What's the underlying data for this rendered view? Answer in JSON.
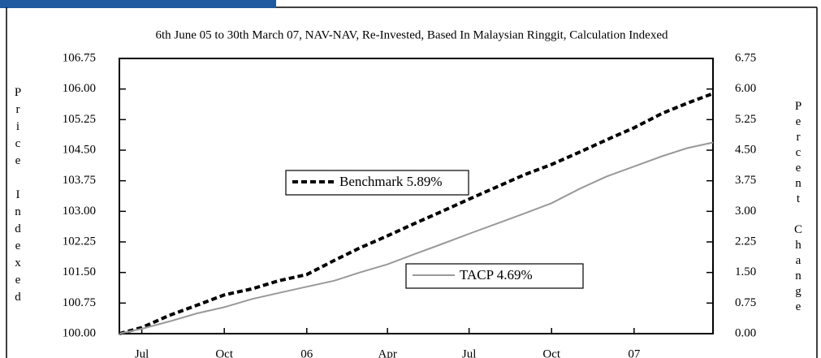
{
  "chart_data": {
    "type": "line",
    "title": "6th June 05 to 30th March 07, NAV-NAV, Re-Invested, Based In Malaysian Ringgit, Calculation Indexed",
    "y_label": "Price Indexed",
    "y2_label": "Percent Change",
    "x": [
      "2005-06-06",
      "2005-07-01",
      "2005-08-01",
      "2005-09-01",
      "2005-10-01",
      "2005-11-01",
      "2005-12-01",
      "2006-01-01",
      "2006-02-01",
      "2006-03-01",
      "2006-04-01",
      "2006-05-01",
      "2006-06-01",
      "2006-07-01",
      "2006-08-01",
      "2006-09-01",
      "2006-10-01",
      "2006-11-01",
      "2006-12-01",
      "2007-01-01",
      "2007-02-01",
      "2007-03-01",
      "2007-03-30"
    ],
    "xlim": [
      "2005-06-06",
      "2007-03-30"
    ],
    "xticks": [
      {
        "value": "2005-07-01",
        "label": "Jul"
      },
      {
        "value": "2005-10-01",
        "label": "Oct"
      },
      {
        "value": "2006-01-01",
        "label": "06"
      },
      {
        "value": "2006-04-01",
        "label": "Apr"
      },
      {
        "value": "2006-07-01",
        "label": "Jul"
      },
      {
        "value": "2006-10-01",
        "label": "Oct"
      },
      {
        "value": "2007-01-01",
        "label": "07"
      }
    ],
    "ylim": [
      100,
      106.75
    ],
    "yticks": [
      {
        "value": 100,
        "label": "100.00"
      },
      100.75,
      {
        "value": 101.5,
        "label": "101.50"
      },
      102.25,
      {
        "value": 103,
        "label": "103.00"
      },
      103.75,
      {
        "value": 104.5,
        "label": "104.50"
      },
      105.25,
      {
        "value": 106,
        "label": "106.00"
      },
      106.75
    ],
    "y2lim": [
      0,
      6.75
    ],
    "y2ticks": [
      {
        "value": 0,
        "label": "0.00"
      },
      0.75,
      {
        "value": 1.5,
        "label": "1.50"
      },
      2.25,
      {
        "value": 3,
        "label": "3.00"
      },
      3.75,
      {
        "value": 4.5,
        "label": "4.50"
      },
      5.25,
      {
        "value": 6,
        "label": "6.00"
      },
      6.75
    ],
    "series": [
      {
        "name": "Benchmark 5.89%",
        "color": "#000000",
        "dashed": true,
        "values": [
          100,
          100.15,
          100.45,
          100.7,
          100.95,
          101.1,
          101.3,
          101.45,
          101.8,
          102.1,
          102.4,
          102.7,
          103.0,
          103.3,
          103.6,
          103.9,
          104.15,
          104.45,
          104.75,
          105.05,
          105.4,
          105.65,
          105.89
        ]
      },
      {
        "name": "TACP 4.69%",
        "color": "#999999",
        "dashed": false,
        "values": [
          100,
          100.12,
          100.3,
          100.5,
          100.65,
          100.85,
          101.0,
          101.15,
          101.3,
          101.5,
          101.7,
          101.95,
          102.2,
          102.45,
          102.7,
          102.95,
          103.2,
          103.55,
          103.85,
          104.1,
          104.35,
          104.55,
          104.69
        ]
      }
    ]
  }
}
